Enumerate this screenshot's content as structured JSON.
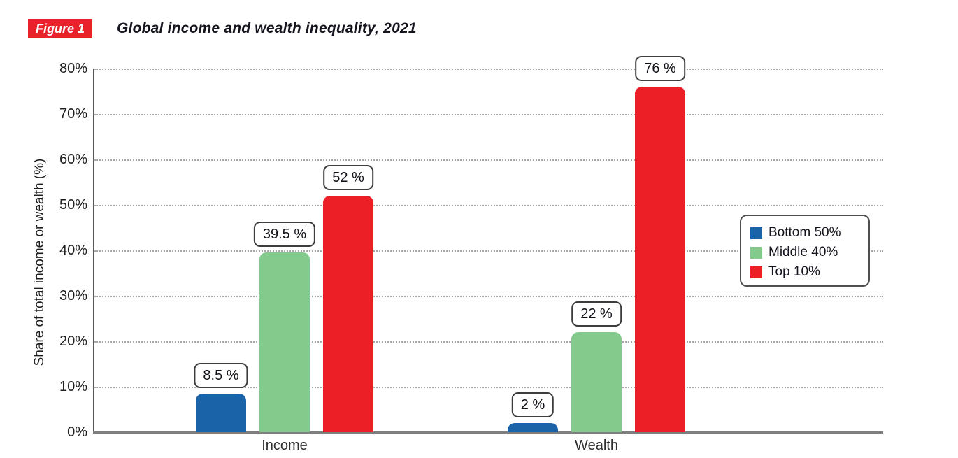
{
  "figure": {
    "label": "Figure 1",
    "title": "Global income and wealth inequality, 2021"
  },
  "colors": {
    "accent_red": "#E9212A",
    "bar_blue": "#1B63A8",
    "bar_green": "#85CA8D",
    "bar_red": "#EC1E26",
    "grid_dot": "#A6A6A6",
    "axis_line": "#7E7E7E",
    "text_dark": "#15151F"
  },
  "chart_data": {
    "type": "bar",
    "title": "Global income and wealth inequality, 2021",
    "categories": [
      "Income",
      "Wealth"
    ],
    "series": [
      {
        "name": "Bottom 50%",
        "color": "#1B63A8",
        "values": [
          8.5,
          2
        ],
        "value_labels": [
          "8.5 %",
          "2 %"
        ]
      },
      {
        "name": "Middle 40%",
        "color": "#85CA8D",
        "values": [
          39.5,
          22
        ],
        "value_labels": [
          "39.5 %",
          "22 %"
        ]
      },
      {
        "name": "Top 10%",
        "color": "#EC1E26",
        "values": [
          52,
          76
        ],
        "value_labels": [
          "52 %",
          "76 %"
        ]
      }
    ],
    "xlabel": "",
    "ylabel": "Share of total income or wealth (%)",
    "ylim": [
      0,
      80
    ],
    "ytick_step": 10,
    "yticks": [
      "0%",
      "10%",
      "20%",
      "30%",
      "40%",
      "50%",
      "60%",
      "70%",
      "80%"
    ],
    "grid": "dotted-horizontal",
    "legend_position": "right",
    "bar_corner": "rounded-top",
    "data_labels": "boxed-above-bars"
  }
}
